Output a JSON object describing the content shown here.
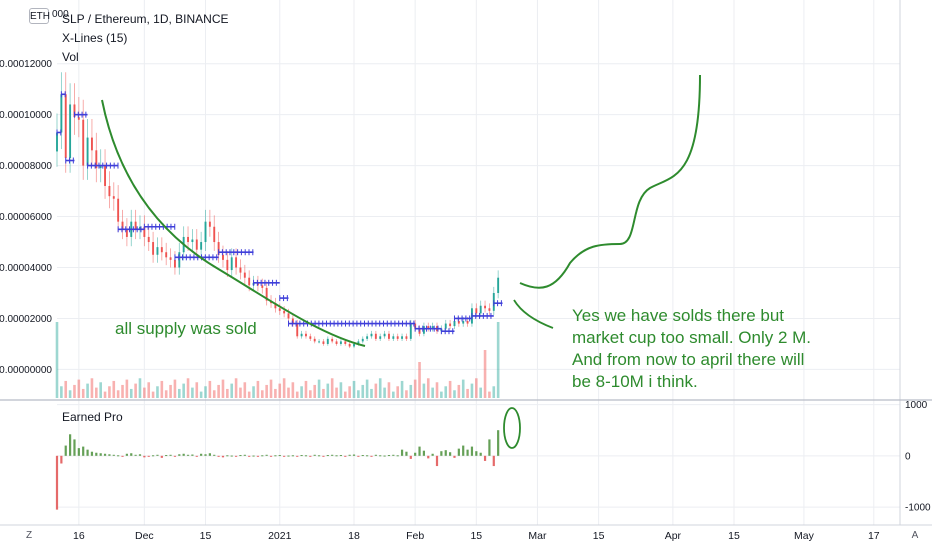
{
  "header": {
    "currency_badge": "ETH",
    "top_price_label": "000",
    "symbol_line": "SLP / Ethereum, 1D, BINANCE",
    "indicator_1": "X-Lines (15)",
    "indicator_2": "Vol"
  },
  "sub_panel": {
    "title": "Earned Pro",
    "y_ticks": [
      "1000",
      "0",
      "-1000"
    ]
  },
  "corner_buttons": {
    "left": "Z",
    "right": "A"
  },
  "annotations": {
    "left_note": "all supply was sold",
    "right_note": "Yes we have solds there but\nmarket cup too small. Only 2 M.\nAnd from now to april there will\nbe 8-10M i think."
  },
  "colors": {
    "up": "#26a69a",
    "down": "#ef5350",
    "xlines": "#3f3fd9",
    "annotation": "#2e8b2e",
    "grid": "#eceef2",
    "osc_up": "#4a8f3a",
    "osc_down": "#e05050"
  },
  "chart_data": {
    "type": "candlestick",
    "title": "SLP / Ethereum, 1D, BINANCE",
    "y_ticks": [
      "0.00000000",
      "0.00002000",
      "0.00004000",
      "0.00006000",
      "0.00008000",
      "0.00010000",
      "0.00012000"
    ],
    "ylim": [
      -1.2e-05,
      0.000145
    ],
    "x_ticks": [
      "16",
      "Dec",
      "15",
      "2021",
      "18",
      "Feb",
      "15",
      "Mar",
      "15",
      "Apr",
      "15",
      "May",
      "17"
    ],
    "x_start": "2020-11-11",
    "x_end": "2021-05-23",
    "closes": [
      9.3e-05,
      0.000108,
      8.3e-05,
      0.000104,
      9.9e-05,
      9.8e-05,
      8e-05,
      9.1e-05,
      8.6e-05,
      7.9e-05,
      8e-05,
      7.2e-05,
      6.8e-05,
      6.7e-05,
      5.8e-05,
      5.5e-05,
      5.2e-05,
      5.8e-05,
      5.5e-05,
      5.6e-05,
      5.2e-05,
      5e-05,
      4.5e-05,
      4.8e-05,
      4.6e-05,
      4.4e-05,
      4.3e-05,
      4e-05,
      4.6e-05,
      5.2e-05,
      5e-05,
      5.1e-05,
      4.7e-05,
      5e-05,
      5.8e-05,
      5.6e-05,
      5e-05,
      4.5e-05,
      4.3e-05,
      3.9e-05,
      4.4e-05,
      4e-05,
      3.8e-05,
      3.6e-05,
      3.3e-05,
      3.4e-05,
      3.3e-05,
      3.2e-05,
      2.7e-05,
      2.6e-05,
      2.4e-05,
      2.3e-05,
      2.2e-05,
      2e-05,
      1.8e-05,
      1.3e-05,
      1.4e-05,
      1.3e-05,
      1.2e-05,
      1.1e-05,
      1.1e-05,
      1e-05,
      1.2e-05,
      1.1e-05,
      1e-05,
      1.1e-05,
      1e-05,
      9e-06,
      1e-05,
      1.1e-05,
      1.2e-05,
      1.3e-05,
      1.4e-05,
      1.2e-05,
      1.3e-05,
      1.4e-05,
      1.2e-05,
      1.3e-05,
      1.2e-05,
      1.3e-05,
      1.2e-05,
      1.8e-05,
      1.6e-05,
      1.4e-05,
      1.7e-05,
      1.6e-05,
      1.7e-05,
      1.5e-05,
      1.6e-05,
      1.8e-05,
      1.7e-05,
      1.9e-05,
      1.8e-05,
      1.9e-05,
      1.8e-05,
      2.4e-05,
      2.2e-05,
      2.5e-05,
      2.4e-05,
      2.3e-05,
      3e-05,
      3.6e-05
    ],
    "xlines": [
      {
        "from": "2020-11-11",
        "to": "2020-11-12",
        "value": 9.3e-05
      },
      {
        "from": "2020-11-12",
        "to": "2020-11-13",
        "value": 0.000108
      },
      {
        "from": "2020-11-13",
        "to": "2020-11-15",
        "value": 8.2e-05
      },
      {
        "from": "2020-11-15",
        "to": "2020-11-18",
        "value": 0.0001
      },
      {
        "from": "2020-11-18",
        "to": "2020-11-25",
        "value": 8e-05
      },
      {
        "from": "2020-11-25",
        "to": "2020-12-01",
        "value": 5.5e-05
      },
      {
        "from": "2020-12-01",
        "to": "2020-12-08",
        "value": 5.6e-05
      },
      {
        "from": "2020-12-08",
        "to": "2020-12-18",
        "value": 4.4e-05
      },
      {
        "from": "2020-12-18",
        "to": "2020-12-26",
        "value": 4.6e-05
      },
      {
        "from": "2020-12-26",
        "to": "2021-01-01",
        "value": 3.4e-05
      },
      {
        "from": "2021-01-01",
        "to": "2021-01-03",
        "value": 2.8e-05
      },
      {
        "from": "2021-01-03",
        "to": "2021-02-01",
        "value": 1.8e-05
      },
      {
        "from": "2021-02-01",
        "to": "2021-02-07",
        "value": 1.6e-05
      },
      {
        "from": "2021-02-07",
        "to": "2021-02-10",
        "value": 1.5e-05
      },
      {
        "from": "2021-02-10",
        "to": "2021-02-14",
        "value": 2e-05
      },
      {
        "from": "2021-02-14",
        "to": "2021-02-19",
        "value": 2.1e-05
      },
      {
        "from": "2021-02-19",
        "to": "2021-02-21",
        "value": 2.6e-05
      }
    ],
    "volume_peaks": [
      {
        "date": "2020-11-11",
        "relative": 0.95
      },
      {
        "date": "2021-02-02",
        "relative": 0.45
      },
      {
        "date": "2021-02-17",
        "relative": 0.6
      },
      {
        "date": "2021-02-20",
        "relative": 0.95
      }
    ],
    "oscillator": {
      "name": "Earned Pro",
      "ylim": [
        -1350,
        1050
      ],
      "values": [
        -1050,
        -150,
        200,
        420,
        320,
        150,
        180,
        120,
        80,
        60,
        50,
        40,
        30,
        20,
        10,
        -20,
        40,
        50,
        20,
        30,
        -30,
        -20,
        10,
        20,
        -40,
        15,
        20,
        -10,
        30,
        40,
        20,
        25,
        -20,
        40,
        30,
        50,
        20,
        -20,
        -30,
        10,
        5,
        -10,
        15,
        20,
        -10,
        5,
        -5,
        10,
        20,
        -5,
        10,
        15,
        -10,
        5,
        10,
        -5,
        15,
        10,
        -10,
        20,
        10,
        -5,
        15,
        20,
        10,
        15,
        -10,
        20,
        25,
        -5,
        15,
        10,
        -15,
        20,
        10,
        5,
        15,
        20,
        10,
        120,
        80,
        -60,
        60,
        180,
        100,
        -50,
        40,
        -200,
        90,
        110,
        70,
        -40,
        140,
        200,
        120,
        180,
        90,
        60,
        -100,
        320,
        -200,
        500
      ]
    }
  }
}
